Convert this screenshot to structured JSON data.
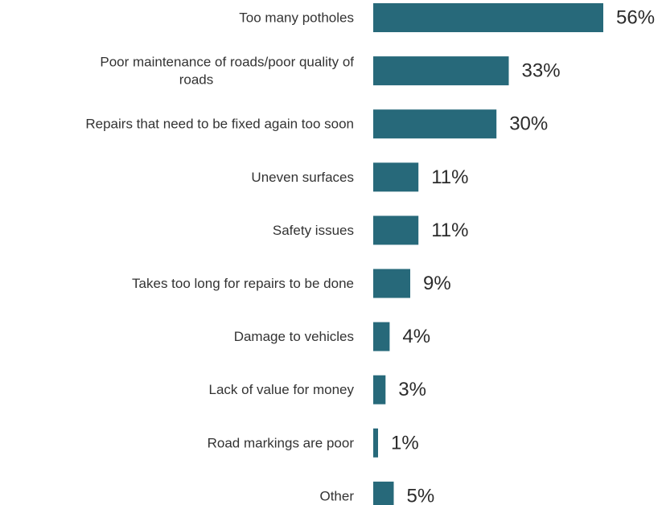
{
  "chart_data": {
    "type": "bar",
    "orientation": "horizontal",
    "title": "",
    "xlabel": "",
    "ylabel": "",
    "categories": [
      [
        "Too many potholes"
      ],
      [
        "Poor maintenance of roads/poor quality of",
        "roads"
      ],
      [
        "Repairs that need to be fixed again too soon"
      ],
      [
        "Uneven surfaces"
      ],
      [
        "Safety issues"
      ],
      [
        "Takes too long for repairs to be done"
      ],
      [
        "Damage to vehicles"
      ],
      [
        "Lack of value for money"
      ],
      [
        "Road markings are poor"
      ],
      [
        "Other"
      ]
    ],
    "values": [
      56,
      33,
      30,
      11,
      11,
      9,
      4,
      3,
      1,
      5
    ],
    "value_labels": [
      "56%",
      "33%",
      "30%",
      "11%",
      "11%",
      "9%",
      "4%",
      "3%",
      "1%",
      "5%"
    ],
    "xlim": [
      0,
      60
    ],
    "unit": "%",
    "bar_color": "#27697a",
    "grid": false,
    "legend": "none"
  }
}
